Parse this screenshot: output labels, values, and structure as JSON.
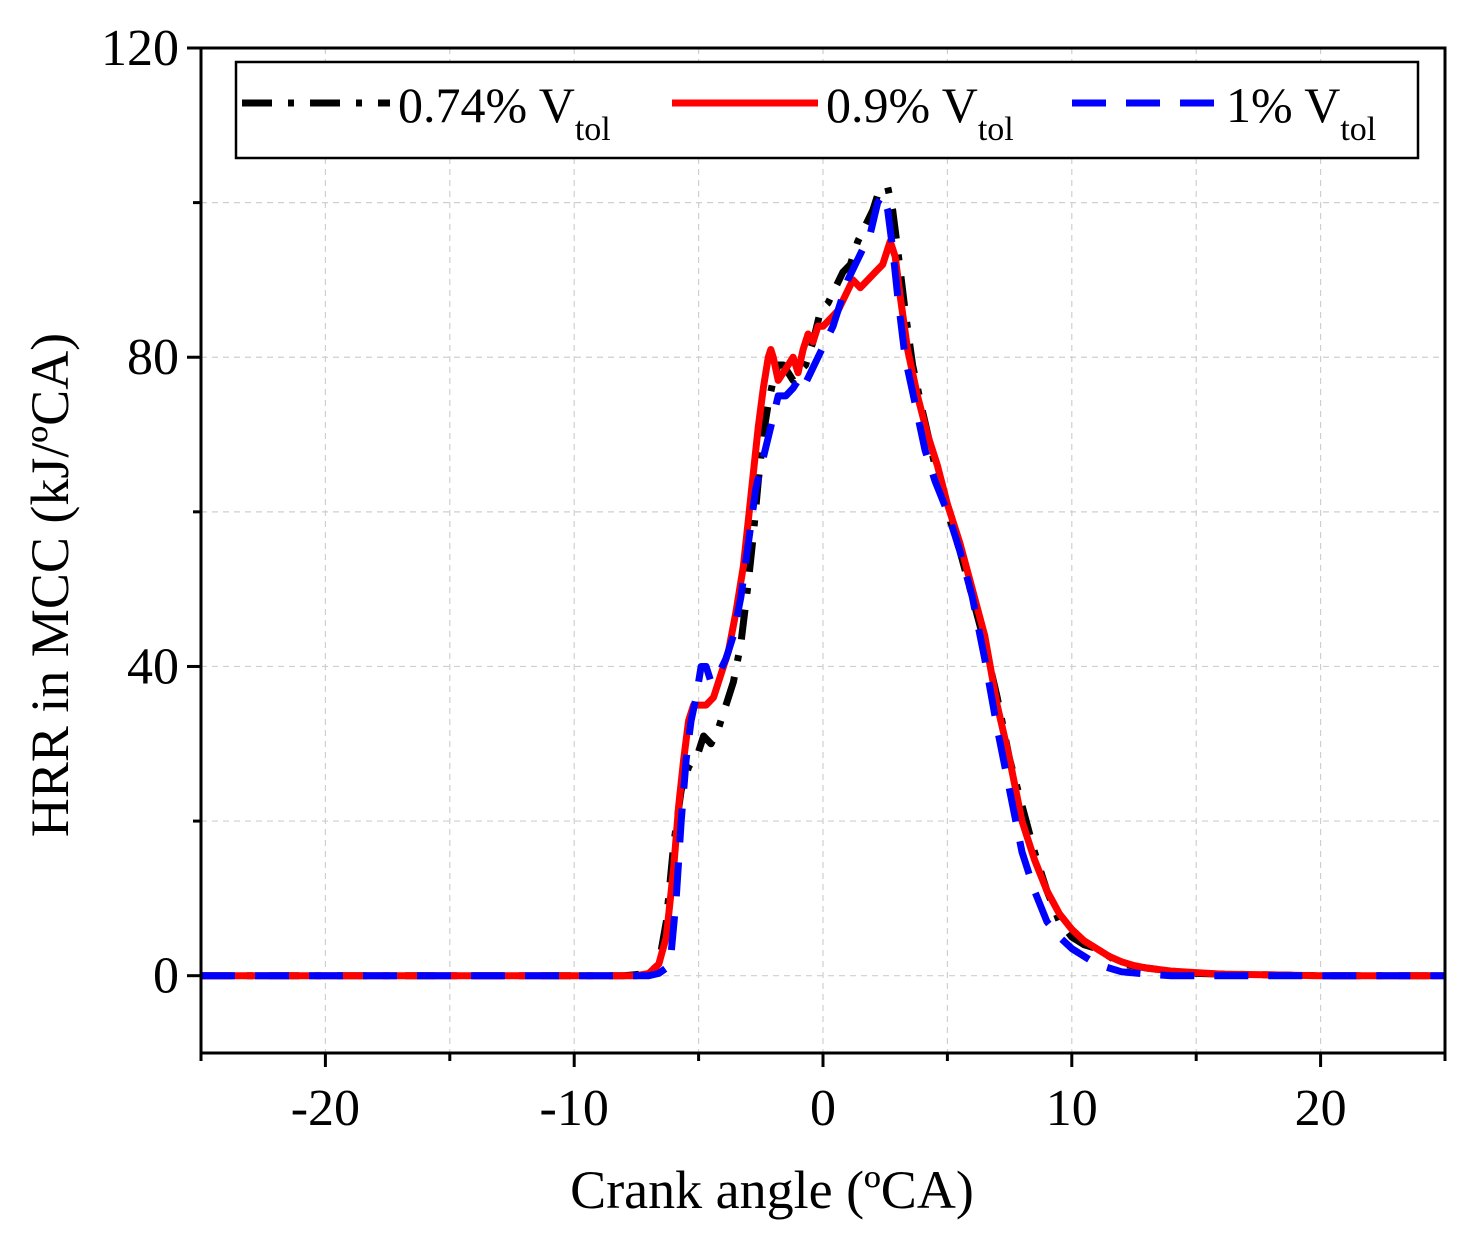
{
  "chart_data": {
    "type": "line",
    "title": "",
    "xlabel": "Crank angle (ºCA)",
    "ylabel": "HRR in MCC (kJ/ºCA)",
    "xlim": [
      -25,
      25
    ],
    "ylim": [
      -10,
      120
    ],
    "xticks": [
      -20,
      -10,
      0,
      10,
      20
    ],
    "xtick_labels": [
      "-20",
      "-10",
      "0",
      "10",
      "20"
    ],
    "yticks": [
      0,
      40,
      80,
      120
    ],
    "ytick_labels": [
      "0",
      "40",
      "80",
      "120"
    ],
    "x_minor_ticks": [
      -25,
      -15,
      -5,
      5,
      15,
      25
    ],
    "y_minor_ticks": [
      20,
      60,
      100
    ],
    "grid": true,
    "legend_position": "top",
    "series": [
      {
        "name": "0.74% V",
        "name_subscript": "tol",
        "color": "#000000",
        "dash": "dash-dot",
        "x": [
          -25,
          -20,
          -15,
          -10,
          -8,
          -7,
          -6.6,
          -6.3,
          -6,
          -5.7,
          -5.4,
          -5.2,
          -5,
          -4.8,
          -4.5,
          -4.2,
          -3.9,
          -3.6,
          -3.3,
          -3,
          -2.8,
          -2.6,
          -2.4,
          -2.2,
          -2,
          -1.8,
          -1.6,
          -1.4,
          -1.2,
          -1,
          -0.7,
          -0.4,
          -0.1,
          0.2,
          0.5,
          0.8,
          1.1,
          1.4,
          1.7,
          2,
          2.2,
          2.4,
          2.6,
          2.8,
          3,
          3.3,
          3.6,
          4,
          4.5,
          5,
          5.5,
          6,
          6.5,
          7,
          7.5,
          8,
          8.5,
          9,
          9.5,
          10,
          10.5,
          11,
          11.5,
          12,
          13,
          14,
          15,
          16,
          18,
          20,
          22,
          25
        ],
        "y": [
          0,
          0,
          0,
          0,
          0,
          0.3,
          1.5,
          7,
          17,
          24,
          27,
          28,
          29,
          31,
          30,
          32,
          35,
          38,
          43,
          51,
          57,
          64,
          70,
          74,
          77,
          79,
          79,
          78,
          77,
          78,
          79,
          82,
          86,
          87,
          89,
          91,
          92,
          95,
          97,
          99,
          101,
          102,
          102,
          99,
          94,
          86,
          79,
          73,
          66,
          60,
          55,
          49,
          43,
          36,
          28,
          22,
          16,
          11,
          7,
          5,
          4,
          3.5,
          2.5,
          1.5,
          1,
          0.6,
          0.3,
          0.2,
          0.1,
          0,
          0,
          0
        ]
      },
      {
        "name": "0.9% V",
        "name_subscript": "tol",
        "color": "#ff0000",
        "dash": "solid",
        "x": [
          -25,
          -20,
          -15,
          -10,
          -8,
          -7.5,
          -7,
          -6.6,
          -6.3,
          -6,
          -5.8,
          -5.6,
          -5.4,
          -5.2,
          -5,
          -4.7,
          -4.4,
          -4.1,
          -3.8,
          -3.5,
          -3.2,
          -3,
          -2.8,
          -2.6,
          -2.4,
          -2.2,
          -2.1,
          -2,
          -1.8,
          -1.6,
          -1.4,
          -1.2,
          -1,
          -0.8,
          -0.6,
          -0.4,
          -0.2,
          0,
          0.3,
          0.6,
          0.9,
          1.2,
          1.5,
          1.8,
          2.1,
          2.4,
          2.7,
          2.9,
          3.1,
          3.4,
          3.8,
          4.2,
          4.6,
          5,
          5.5,
          6,
          6.5,
          7,
          7.5,
          8,
          8.5,
          9,
          9.5,
          10,
          10.5,
          11,
          11.5,
          12,
          12.5,
          13,
          14,
          15,
          16,
          18,
          20,
          22,
          25
        ],
        "y": [
          0,
          0,
          0,
          0,
          0,
          0,
          0.3,
          1.5,
          5,
          14,
          22,
          28,
          33,
          35,
          35,
          35,
          36,
          39,
          42,
          47,
          53,
          59,
          65,
          71,
          76,
          80,
          81,
          80,
          77,
          78,
          79,
          80,
          78,
          81,
          83,
          82,
          84,
          84,
          85,
          86,
          88,
          90,
          89,
          90,
          91,
          92,
          95,
          93,
          88,
          81,
          75,
          70,
          66,
          61,
          56,
          50,
          44,
          35,
          28,
          20,
          15,
          11,
          8,
          6,
          4.5,
          3.5,
          2.5,
          1.8,
          1.3,
          1,
          0.6,
          0.4,
          0.2,
          0.1,
          0,
          0,
          0
        ]
      },
      {
        "name": "1% V",
        "name_subscript": "tol",
        "color": "#0000ff",
        "dash": "dashed",
        "x": [
          -25,
          -20,
          -15,
          -10,
          -8,
          -7,
          -6.6,
          -6.3,
          -6.1,
          -5.9,
          -5.7,
          -5.5,
          -5.3,
          -5.1,
          -4.9,
          -4.7,
          -4.5,
          -4.2,
          -3.9,
          -3.6,
          -3.3,
          -3,
          -2.7,
          -2.4,
          -2.1,
          -1.8,
          -1.5,
          -1.2,
          -1,
          -0.8,
          -0.5,
          -0.2,
          0.1,
          0.4,
          0.7,
          1,
          1.3,
          1.6,
          1.9,
          2.2,
          2.4,
          2.6,
          2.8,
          3,
          3.3,
          3.7,
          4.1,
          4.5,
          5,
          5.5,
          6,
          6.5,
          7,
          7.5,
          8,
          8.5,
          9,
          9.5,
          10,
          10.5,
          11,
          11.5,
          12,
          13,
          14,
          16,
          18,
          20,
          22,
          25
        ],
        "y": [
          0,
          0,
          0,
          0,
          0,
          0,
          0.3,
          1,
          3,
          10,
          20,
          28,
          33,
          36,
          40,
          40,
          38,
          39,
          41,
          44,
          49,
          56,
          63,
          67,
          71,
          75,
          75,
          76,
          77,
          76,
          78,
          80,
          82,
          84,
          87,
          90,
          92,
          94,
          96,
          100,
          101,
          99,
          94,
          88,
          80,
          74,
          68,
          64,
          60,
          55,
          49,
          41,
          32,
          24,
          16,
          11,
          7,
          5,
          3.5,
          2.5,
          1.5,
          1,
          0.5,
          0.2,
          0,
          0,
          0,
          0,
          0,
          0
        ]
      }
    ]
  }
}
